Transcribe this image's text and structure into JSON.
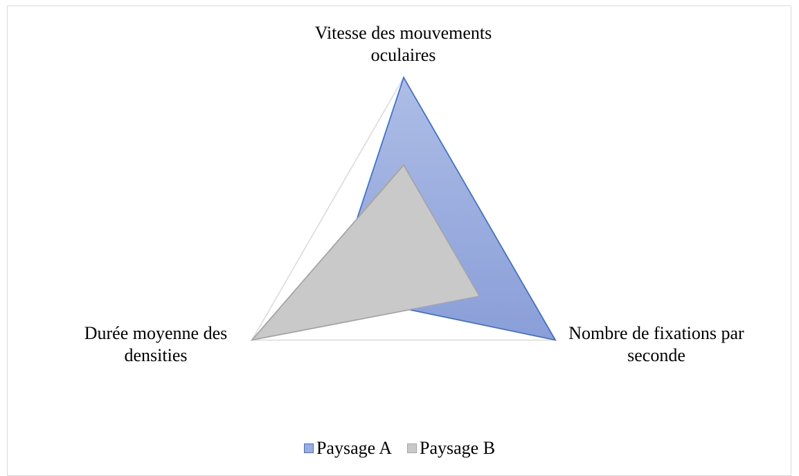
{
  "chart_data": {
    "type": "radar",
    "categories": [
      "Vitesse des mouvements oculaires",
      "Nombre de fixations par seconde",
      "Durée moyenne des densities"
    ],
    "series": [
      {
        "name": "Paysage A",
        "color": "#4472c4",
        "values": [
          1,
          1,
          0.47
        ]
      },
      {
        "name": "Paysage B",
        "color": "#a5a5a5",
        "values": [
          0.5,
          0.5,
          1
        ]
      }
    ],
    "rlim": [
      0,
      1
    ],
    "legend": "bottom"
  }
}
